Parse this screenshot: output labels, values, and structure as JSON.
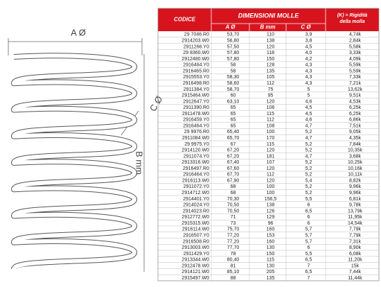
{
  "diagram": {
    "a_label": "A Ø",
    "b_label": "B mm",
    "c_label": "C Ø"
  },
  "table": {
    "header": {
      "codice": "CODICE",
      "dimensioni": "DIMENSIONI MOLLE",
      "a": "A Ø",
      "b": "B mm",
      "c": "C Ø",
      "k": "(K) = Rigidità della molla"
    },
    "rows": [
      [
        "29 7046.R0",
        "53,70",
        "110",
        "3,9",
        "4,74k"
      ],
      [
        "2914203.W0",
        "56,80",
        "138",
        "3,8",
        "2,84k"
      ],
      [
        "2911266.Y0",
        "57,50",
        "120",
        "4,5",
        "5,58k"
      ],
      [
        "29 8360.W0",
        "57,80",
        "118",
        "4,0",
        "3,33k"
      ],
      [
        "2912480.W0",
        "57,80",
        "150",
        "4,2",
        "4,09k"
      ],
      [
        "2916464.Y0",
        "58",
        "128",
        "4,3",
        "5,59k"
      ],
      [
        "2916465.R0",
        "58",
        "135",
        "4,3",
        "5,59k"
      ],
      [
        "2915553.Y0",
        "58,30",
        "105",
        "4,3",
        "7,33k"
      ],
      [
        "2916498.R0",
        "58,60",
        "112",
        "4,3",
        "7,21k"
      ],
      [
        "2911384.Y0",
        "58,70",
        "75",
        "5",
        "13,62k"
      ],
      [
        "2915464.W0",
        "60",
        "95",
        "5",
        "9,51k"
      ],
      [
        "2912647.Y0",
        "63,10",
        "120",
        "4,6",
        "4,53k"
      ],
      [
        "2911390.R0",
        "65",
        "106",
        "4,5",
        "6,25k"
      ],
      [
        "2911478.W0",
        "65",
        "115",
        "4,5",
        "6,25k"
      ],
      [
        "2916459.Y0",
        "65",
        "112",
        "4,6",
        "6,86k"
      ],
      [
        "2916464.Y0",
        "65",
        "108",
        "4,7",
        "7,51k"
      ],
      [
        "29 9976.R0",
        "65,40",
        "100",
        "5,2",
        "9,05k"
      ],
      [
        "2911084.W0",
        "65,70",
        "170",
        "4,7",
        "4,35k"
      ],
      [
        "29 9975.Y0",
        "67",
        "115",
        "5,2",
        "7,84k"
      ],
      [
        "2914120.W0",
        "67,20",
        "120",
        "5,2",
        "10,35k"
      ],
      [
        "2911074.Y0",
        "67,20",
        "181",
        "4,7",
        "3,68k"
      ],
      [
        "2913316.W0",
        "67,40",
        "107",
        "5,2",
        "10,25k"
      ],
      [
        "2916497.R0",
        "67,60",
        "120",
        "5,2",
        "10,16k"
      ],
      [
        "2916464.Y0",
        "67,70",
        "112",
        "5,2",
        "10,11k"
      ],
      [
        "2916113.W0",
        "67,90",
        "120",
        "5,4",
        "8,82k"
      ],
      [
        "2911072.Y0",
        "68",
        "100",
        "5,2",
        "9,96k"
      ],
      [
        "2914712.W0",
        "68",
        "100",
        "5,2",
        "9,96k"
      ],
      [
        "2914401.Y0",
        "70,30",
        "156,5",
        "5,5",
        "6,81k"
      ],
      [
        "2914024.Y0",
        "70,50",
        "138",
        "6",
        "9,78k"
      ],
      [
        "2914023.R0",
        "70,50",
        "126",
        "6,5",
        "13,79k"
      ],
      [
        "2912772.W0",
        "71",
        "129",
        "6",
        "11,95k"
      ],
      [
        "2915315.W0",
        "73",
        "96",
        "6",
        "14,54k"
      ],
      [
        "2916114.W0",
        "75,70",
        "160",
        "5,7",
        "7,79k"
      ],
      [
        "2916507.Y0",
        "77,20",
        "153",
        "5,7",
        "7,79k"
      ],
      [
        "2916508.R0",
        "77,20",
        "160",
        "5,7",
        "7,31k"
      ],
      [
        "2913003.W0",
        "77,70",
        "130",
        "6",
        "8,90k"
      ],
      [
        "2911429.Y0",
        "78",
        "150",
        "5,5",
        "6,08k"
      ],
      [
        "2913344.W0",
        "80,40",
        "115",
        "6,5",
        "11,20k"
      ],
      [
        "2912478.W0",
        "81",
        "130",
        "7",
        "15k"
      ],
      [
        "2914121.W0",
        "85,10",
        "205",
        "6,5",
        "7,44k"
      ],
      [
        "2915497.W0",
        "88",
        "135",
        "7",
        "11,44k"
      ]
    ]
  }
}
